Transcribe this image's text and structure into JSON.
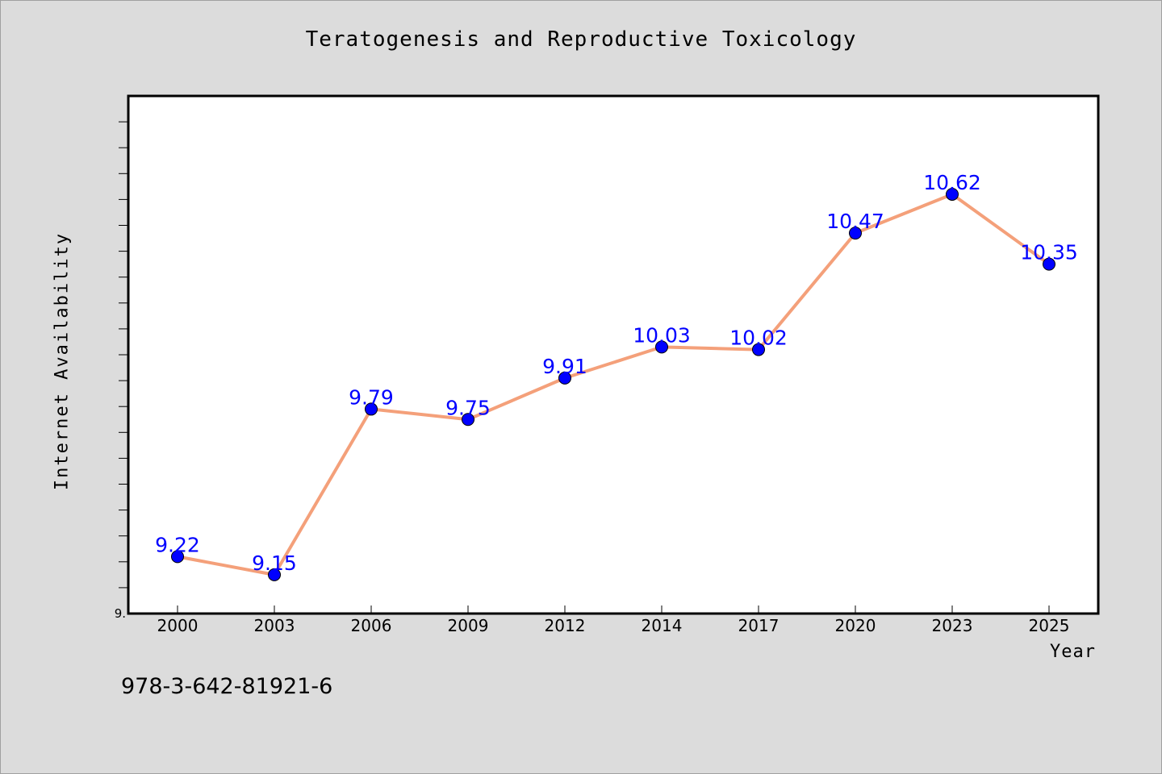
{
  "title": "Teratogenesis and Reproductive Toxicology",
  "isbn": "978-3-642-81921-6",
  "chart_data": {
    "type": "line",
    "title": "Teratogenesis and Reproductive Toxicology",
    "xlabel": "Year",
    "ylabel": "Internet Availability",
    "categories": [
      "2000",
      "2003",
      "2006",
      "2009",
      "2012",
      "2014",
      "2017",
      "2020",
      "2023",
      "2025"
    ],
    "values": [
      9.22,
      9.15,
      9.79,
      9.75,
      9.91,
      10.03,
      10.02,
      10.47,
      10.62,
      10.35
    ],
    "data_labels": [
      "9.22",
      "9.15",
      "9.79",
      "9.75",
      "9.91",
      "10.03",
      "10.02",
      "10.47",
      "10.62",
      "10.35"
    ],
    "ylim": [
      9.0,
      11.0
    ],
    "y_tick_labels": [
      "9."
    ],
    "grid": false,
    "legend": "none",
    "colors": {
      "line": "#f4a07a",
      "marker": "#0000ff",
      "label": "#0000ff",
      "background": "#dcdcdc",
      "plot_bg": "#ffffff"
    }
  }
}
